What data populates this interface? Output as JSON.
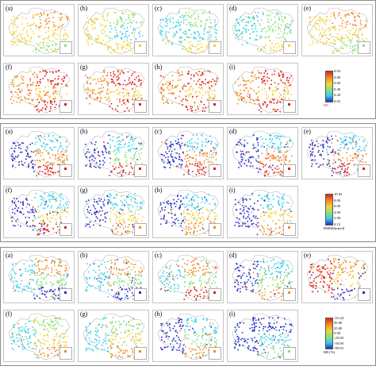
{
  "panel_labels": [
    "(a)",
    "(b)",
    "(c)",
    "(d)",
    "(e)",
    "(f)",
    "(g)",
    "(h)",
    "(i)"
  ],
  "colors": {
    "low": "#2c2cc8",
    "cyan": "#38d0e8",
    "green": "#8ee07a",
    "yellow": "#f5d23a",
    "orange": "#f08a24",
    "red": "#e0201a",
    "map_outline": "#b8b8b8"
  },
  "grids": [
    {
      "name": "cc",
      "legend": {
        "ticks": [
          "0.93",
          "0.80",
          "0.60",
          "0.40",
          "0.20",
          "0.02"
        ],
        "unit": "CC"
      },
      "palettes": [
        [
          "yellow",
          "orange",
          "yellow",
          "green"
        ],
        [
          "yellow",
          "green",
          "cyan",
          "yellow"
        ],
        [
          "cyan",
          "green",
          "cyan",
          "yellow"
        ],
        [
          "cyan",
          "green",
          "green",
          "yellow"
        ],
        [
          "yellow",
          "orange",
          "yellow",
          "green"
        ],
        [
          "orange",
          "red",
          "yellow",
          "red"
        ],
        [
          "orange",
          "red",
          "yellow",
          "red"
        ],
        [
          "orange",
          "red",
          "yellow",
          "red"
        ],
        [
          "orange",
          "red",
          "yellow",
          "red"
        ]
      ]
    },
    {
      "name": "rmse",
      "legend": {
        "ticks": [
          "10.92",
          "8.00",
          "6.00",
          "4.00",
          "2.00",
          "0.12"
        ],
        "unit": "RMSE(mm/d)"
      },
      "palettes": [
        [
          "low",
          "cyan",
          "orange",
          "red"
        ],
        [
          "low",
          "cyan",
          "green",
          "red"
        ],
        [
          "low",
          "cyan",
          "orange",
          "red"
        ],
        [
          "low",
          "cyan",
          "orange",
          "red"
        ],
        [
          "low",
          "cyan",
          "orange",
          "red"
        ],
        [
          "low",
          "cyan",
          "yellow",
          "red"
        ],
        [
          "low",
          "cyan",
          "yellow",
          "orange"
        ],
        [
          "low",
          "cyan",
          "yellow",
          "orange"
        ],
        [
          "low",
          "cyan",
          "yellow",
          "orange"
        ]
      ]
    },
    {
      "name": "rb",
      "legend": {
        "ticks": [
          "113.24",
          "50.00",
          "25.00",
          "0.00",
          "-25.00",
          "-50.00",
          "-99.93"
        ],
        "unit": "RB (%)"
      },
      "palettes": [
        [
          "cyan",
          "orange",
          "green",
          "low"
        ],
        [
          "cyan",
          "orange",
          "green",
          "low"
        ],
        [
          "cyan",
          "orange",
          "green",
          "red"
        ],
        [
          "low",
          "cyan",
          "green",
          "orange"
        ],
        [
          "red",
          "orange",
          "yellow",
          "low"
        ],
        [
          "cyan",
          "green",
          "yellow",
          "orange"
        ],
        [
          "cyan",
          "green",
          "yellow",
          "orange"
        ],
        [
          "low",
          "cyan",
          "green",
          "orange"
        ],
        [
          "low",
          "low",
          "cyan",
          "green"
        ]
      ]
    }
  ]
}
